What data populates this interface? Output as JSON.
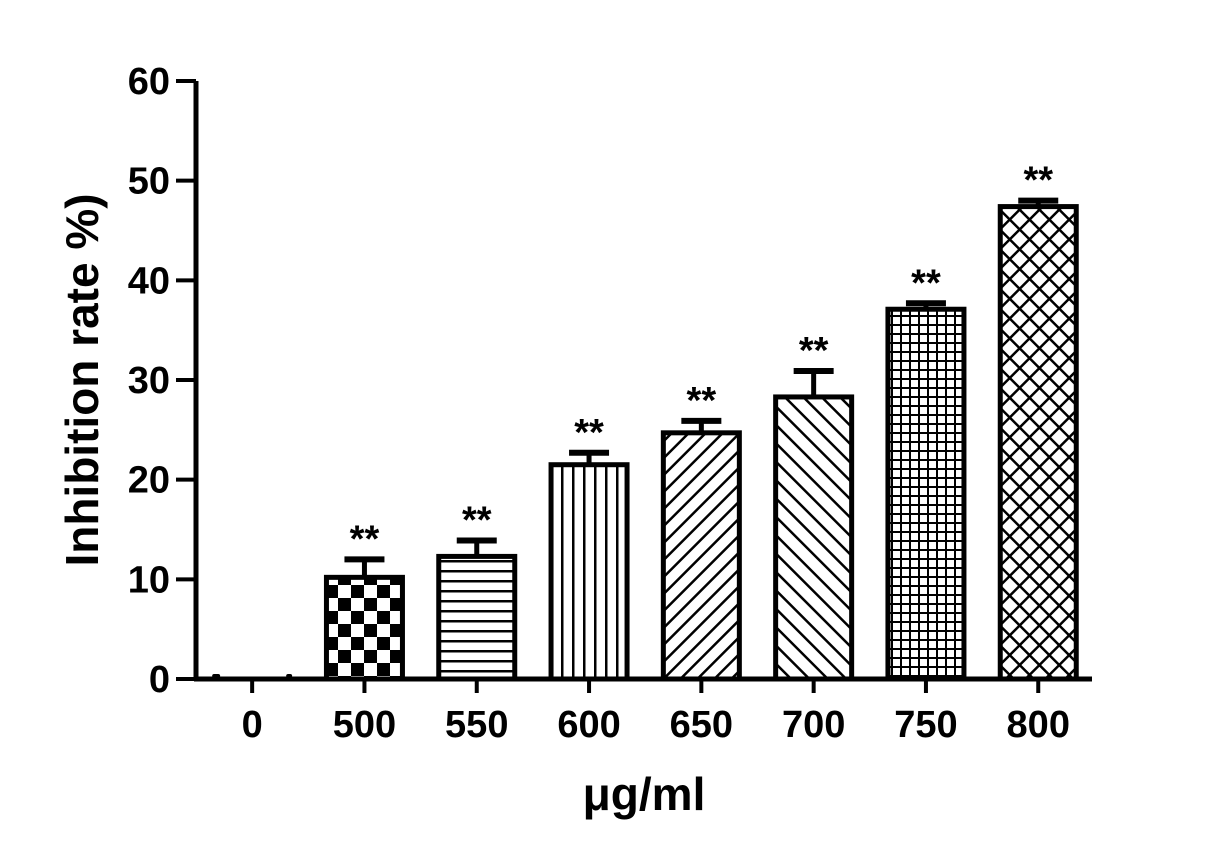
{
  "chart_data": {
    "type": "bar",
    "title": "",
    "xlabel": "μg/ml",
    "ylabel": "Inhibition rate %)",
    "ylim": [
      0,
      60
    ],
    "yticks": [
      0,
      10,
      20,
      30,
      40,
      50,
      60
    ],
    "grid": false,
    "legend": "none",
    "categories": [
      "0",
      "500",
      "550",
      "600",
      "650",
      "700",
      "750",
      "800"
    ],
    "values": [
      0,
      10.2,
      12.3,
      21.5,
      24.7,
      28.3,
      37.1,
      47.4
    ],
    "errors": [
      0,
      1.8,
      1.6,
      1.2,
      1.2,
      2.6,
      0.6,
      0.6
    ],
    "annotations": [
      "",
      "**",
      "**",
      "**",
      "**",
      "**",
      "**",
      "**"
    ],
    "fill_patterns": [
      "none",
      "checker",
      "horizontal",
      "vertical",
      "diagonal-up",
      "diagonal-down",
      "grid",
      "crosshatch"
    ],
    "colors": {
      "ink": "#000000",
      "background": "#ffffff"
    }
  }
}
